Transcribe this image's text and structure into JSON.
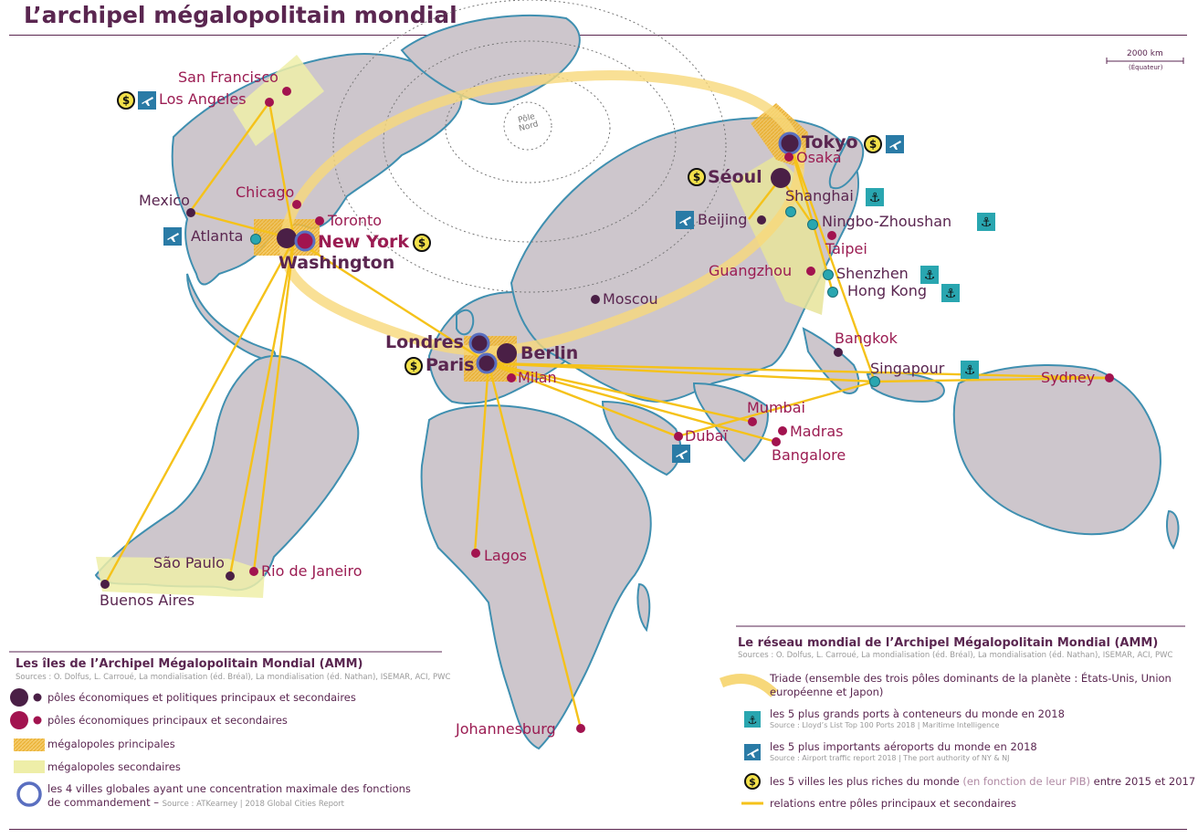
{
  "title": "L’archipel mégalopolitain mondial",
  "scale": {
    "label": "2000 km",
    "sub": "(Équateur)"
  },
  "pole": "Pôle Nord",
  "colors": {
    "land": "#cdc6cc",
    "coast": "#3f8fb0",
    "triad": "#f7d87a",
    "link": "#f5c21a",
    "major": "#f2c14e",
    "minor": "#eeeea8",
    "primary": "#4a1f46",
    "secondary": "#a2134f",
    "ring": "#5a6fc0",
    "port": "#29a6b0"
  },
  "cities": {
    "sanfrancisco": "San Francisco",
    "losangeles": "Los Angeles",
    "mexico": "Mexico",
    "chicago": "Chicago",
    "toronto": "Toronto",
    "atlanta": "Atlanta",
    "newyork": "New York",
    "washington": "Washington",
    "saopaulo": "São Paulo",
    "riodejaneiro": "Rio de Janeiro",
    "buenosaires": "Buenos Aires",
    "londres": "Londres",
    "paris": "Paris",
    "berlin": "Berlin",
    "milan": "Milan",
    "moscou": "Moscou",
    "lagos": "Lagos",
    "johannesburg": "Johannesburg",
    "dubai": "Dubaï",
    "mumbai": "Mumbai",
    "madras": "Madras",
    "bangalore": "Bangalore",
    "bangkok": "Bangkok",
    "singapour": "Singapour",
    "sydney": "Sydney",
    "tokyo": "Tokyo",
    "osaka": "Osaka",
    "seoul": "Séoul",
    "shanghai": "Shanghai",
    "beijing": "Beijing",
    "ningbo": "Ningbo-Zhoushan",
    "taipei": "Taipei",
    "guangzhou": "Guangzhou",
    "shenzhen": "Shenzhen",
    "hongkong": "Hong Kong"
  },
  "legend_left": {
    "title": "Les îles de l’Archipel Mégalopolitain Mondial (AMM)",
    "sources": "Sources : O. Dolfus, L. Carroué, La mondialisation (éd. Bréal), La mondialisation (éd. Nathan), ISEMAR, ACI, PWC",
    "items": {
      "eco_pol": "pôles économiques et politiques principaux et secondaires",
      "eco": "pôles économiques principaux et secondaires",
      "major": "mégalopoles principales",
      "minor": "mégalopoles secondaires",
      "global_1": "les 4 villes globales ayant une concentration maximale des fonctions",
      "global_2": "de commandement – ",
      "global_src": "Source : ATKearney | 2018 Global Cities Report"
    }
  },
  "legend_right": {
    "title": "Le réseau mondial de l’Archipel Mégalopolitain Mondial (AMM)",
    "sources": "Sources : O. Dolfus, L. Carroué, La mondialisation (éd. Bréal), La mondialisation (éd. Nathan), ISEMAR, ACI, PWC",
    "triad_1": "Triade (ensemble des trois pôles dominants de la planète : États-Unis, Union",
    "triad_2": "européenne et Japon)",
    "ports": "les 5 plus grands ports à conteneurs du monde en 2018",
    "ports_src": "Source : Lloyd’s List Top 100 Ports 2018 | Maritime Intelligence",
    "airports": "les 5 plus importants aéroports du monde en 2018",
    "airports_src": "Source : Airport traffic report 2018 | The port authority of NY & NJ",
    "rich_a": "les 5 villes les plus riches du monde",
    "rich_b": " (en fonction de leur PIB)",
    "rich_c": " entre 2015 et 2017",
    "relations": "relations entre pôles principaux et secondaires"
  }
}
